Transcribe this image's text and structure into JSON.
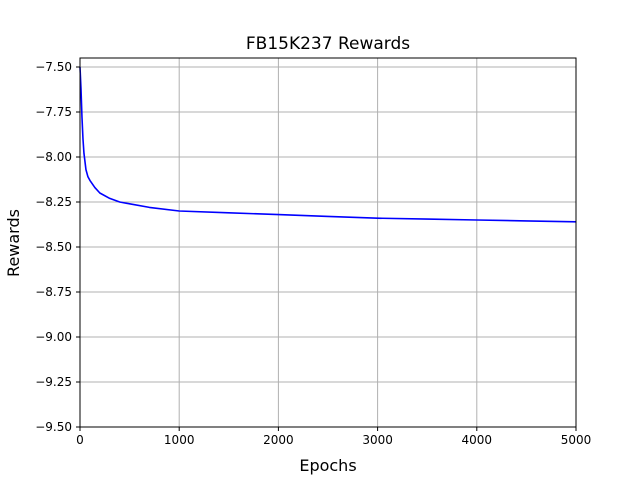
{
  "chart_data": {
    "type": "line",
    "title": "FB15K237 Rewards",
    "xlabel": "Epochs",
    "ylabel": "Rewards",
    "xlim": [
      0,
      5000
    ],
    "ylim": [
      -9.5,
      -7.45
    ],
    "grid": true,
    "x_ticks": [
      0,
      1000,
      2000,
      3000,
      4000,
      5000
    ],
    "x_tick_labels": [
      "0",
      "1000",
      "2000",
      "3000",
      "4000",
      "5000"
    ],
    "y_ticks": [
      -7.5,
      -7.75,
      -8.0,
      -8.25,
      -8.5,
      -8.75,
      -9.0,
      -9.25,
      -9.5
    ],
    "y_tick_labels": [
      "−7.50",
      "−7.75",
      "−8.00",
      "−8.25",
      "−8.50",
      "−8.75",
      "−9.00",
      "−9.25",
      "−9.50"
    ],
    "series": [
      {
        "color": "#0000ff",
        "x": [
          0,
          10,
          20,
          30,
          40,
          60,
          80,
          100,
          150,
          200,
          300,
          400,
          500,
          700,
          1000,
          1500,
          2000,
          2500,
          3000,
          3500,
          4000,
          4500,
          5000
        ],
        "y": [
          -7.5,
          -7.62,
          -7.78,
          -7.9,
          -7.98,
          -8.07,
          -8.11,
          -8.13,
          -8.17,
          -8.2,
          -8.23,
          -8.25,
          -8.26,
          -8.28,
          -8.3,
          -8.31,
          -8.32,
          -8.33,
          -8.34,
          -8.345,
          -8.35,
          -8.355,
          -8.36
        ]
      }
    ]
  }
}
